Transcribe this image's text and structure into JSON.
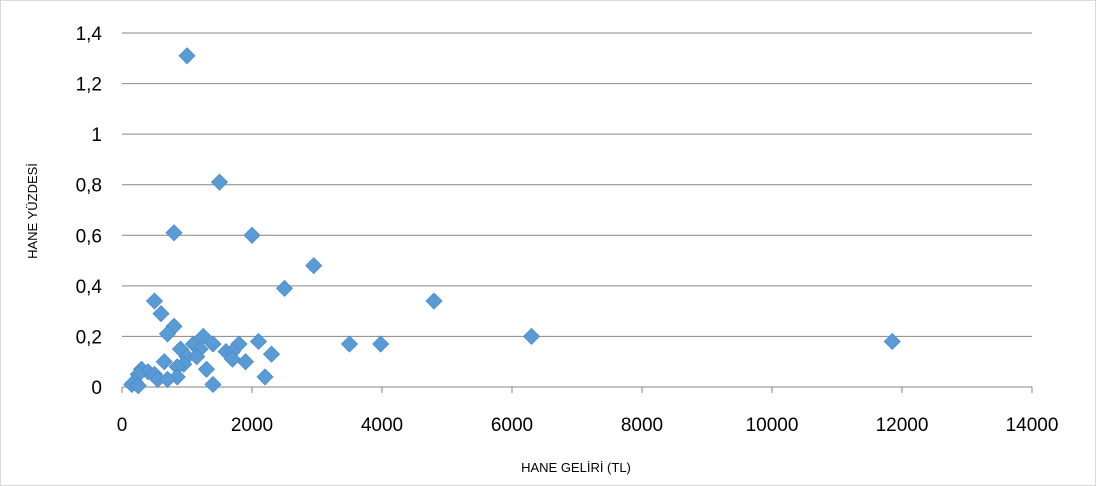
{
  "chart_data": {
    "type": "scatter",
    "xlabel": "HANE GELİRİ (TL)",
    "ylabel": "HANE YÜZDESİ",
    "xlim": [
      0,
      14000
    ],
    "ylim": [
      0,
      1.4
    ],
    "x_ticks": [
      0,
      2000,
      4000,
      6000,
      8000,
      10000,
      12000,
      14000
    ],
    "y_ticks": [
      0,
      0.2,
      0.4,
      0.6,
      0.8,
      1,
      1.2,
      1.4
    ],
    "x_tick_labels": [
      "0",
      "2000",
      "4000",
      "6000",
      "8000",
      "10000",
      "12000",
      "14000"
    ],
    "y_tick_labels": [
      "0",
      "0,2",
      "0,4",
      "0,6",
      "0,8",
      "1",
      "1,2",
      "1,4"
    ],
    "grid": "horizontal",
    "legend": "none",
    "marker": "diamond",
    "marker_color": "#5b9bd5",
    "series": [
      {
        "points": [
          [
            1000,
            1.31
          ],
          [
            1500,
            0.81
          ],
          [
            800,
            0.61
          ],
          [
            2000,
            0.6
          ],
          [
            2950,
            0.48
          ],
          [
            2500,
            0.39
          ],
          [
            4800,
            0.34
          ],
          [
            500,
            0.34
          ],
          [
            600,
            0.29
          ],
          [
            800,
            0.24
          ],
          [
            700,
            0.21
          ],
          [
            1250,
            0.2
          ],
          [
            6300,
            0.2
          ],
          [
            11850,
            0.18
          ],
          [
            2100,
            0.18
          ],
          [
            1100,
            0.17
          ],
          [
            1400,
            0.17
          ],
          [
            1800,
            0.17
          ],
          [
            3500,
            0.17
          ],
          [
            3980,
            0.17
          ],
          [
            900,
            0.15
          ],
          [
            1200,
            0.15
          ],
          [
            1600,
            0.14
          ],
          [
            1700,
            0.14
          ],
          [
            2300,
            0.13
          ],
          [
            1000,
            0.12
          ],
          [
            1150,
            0.12
          ],
          [
            1700,
            0.11
          ],
          [
            650,
            0.1
          ],
          [
            1900,
            0.1
          ],
          [
            950,
            0.09
          ],
          [
            850,
            0.08
          ],
          [
            1300,
            0.07
          ],
          [
            300,
            0.07
          ],
          [
            400,
            0.06
          ],
          [
            250,
            0.05
          ],
          [
            500,
            0.05
          ],
          [
            850,
            0.04
          ],
          [
            2200,
            0.04
          ],
          [
            550,
            0.03
          ],
          [
            700,
            0.03
          ],
          [
            200,
            0.02
          ],
          [
            150,
            0.01
          ],
          [
            1400,
            0.01
          ],
          [
            250,
            0.005
          ]
        ]
      }
    ]
  }
}
